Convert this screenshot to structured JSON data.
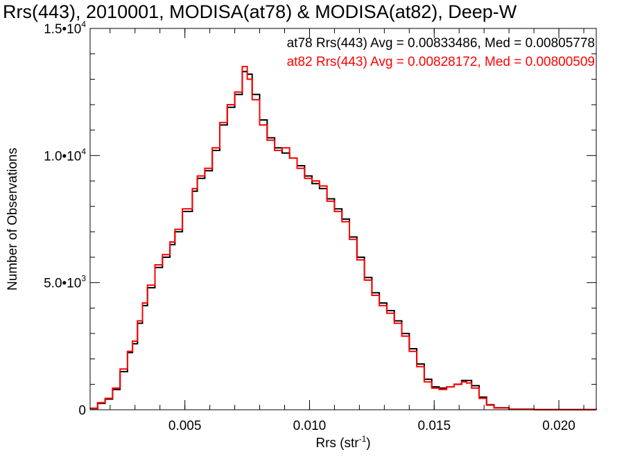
{
  "chart_data": {
    "type": "line",
    "title": "Rrs(443), 2010001, MODISA(at78) & MODISA(at82), Deep-W",
    "xlabel": "Rrs (str",
    "xlabel_sup": "-1",
    "xlabel_close": ")",
    "ylabel": "Number of Observations",
    "xlim": [
      0.0012,
      0.0215
    ],
    "ylim": [
      0,
      15000
    ],
    "x_ticks": [
      {
        "value": 0.005,
        "label": "0.005"
      },
      {
        "value": 0.01,
        "label": "0.010"
      },
      {
        "value": 0.015,
        "label": "0.015"
      },
      {
        "value": 0.02,
        "label": "0.020"
      }
    ],
    "y_ticks": [
      {
        "value": 0,
        "mant": "0",
        "exp": ""
      },
      {
        "value": 5000,
        "mant": "5.0•10",
        "exp": "3"
      },
      {
        "value": 10000,
        "mant": "1.0•10",
        "exp": "4"
      },
      {
        "value": 15000,
        "mant": "1.5•10",
        "exp": "4"
      }
    ],
    "legend_position": "top-right",
    "grid": false,
    "series": [
      {
        "name": "at78",
        "label": "at78 Rrs(443) Avg = 0.00833486, Med = 0.00805778",
        "color": "#000000",
        "points": [
          [
            0.0012,
            50
          ],
          [
            0.0015,
            250
          ],
          [
            0.0018,
            420
          ],
          [
            0.0021,
            800
          ],
          [
            0.0024,
            1500
          ],
          [
            0.0027,
            2250
          ],
          [
            0.0029,
            2600
          ],
          [
            0.0031,
            3400
          ],
          [
            0.0033,
            4100
          ],
          [
            0.0035,
            4800
          ],
          [
            0.0038,
            5600
          ],
          [
            0.0041,
            6000
          ],
          [
            0.0044,
            6500
          ],
          [
            0.0046,
            7000
          ],
          [
            0.0049,
            7800
          ],
          [
            0.0053,
            8600
          ],
          [
            0.0055,
            9100
          ],
          [
            0.0058,
            9400
          ],
          [
            0.0061,
            10200
          ],
          [
            0.0064,
            11200
          ],
          [
            0.0067,
            11900
          ],
          [
            0.007,
            12400
          ],
          [
            0.0073,
            13300
          ],
          [
            0.0075,
            13200
          ],
          [
            0.0077,
            12400
          ],
          [
            0.008,
            11400
          ],
          [
            0.0083,
            10700
          ],
          [
            0.0086,
            10300
          ],
          [
            0.0089,
            10100
          ],
          [
            0.0092,
            9900
          ],
          [
            0.0095,
            9600
          ],
          [
            0.0098,
            9200
          ],
          [
            0.0101,
            8900
          ],
          [
            0.0104,
            8700
          ],
          [
            0.0107,
            8300
          ],
          [
            0.011,
            7900
          ],
          [
            0.0113,
            7500
          ],
          [
            0.0116,
            6800
          ],
          [
            0.0119,
            6000
          ],
          [
            0.0122,
            5200
          ],
          [
            0.0125,
            4600
          ],
          [
            0.0128,
            4200
          ],
          [
            0.0131,
            3900
          ],
          [
            0.0134,
            3500
          ],
          [
            0.0137,
            3000
          ],
          [
            0.014,
            2400
          ],
          [
            0.0143,
            1800
          ],
          [
            0.0146,
            1200
          ],
          [
            0.0149,
            900
          ],
          [
            0.0152,
            850
          ],
          [
            0.0155,
            900
          ],
          [
            0.0158,
            1000
          ],
          [
            0.0161,
            1150
          ],
          [
            0.0163,
            1150
          ],
          [
            0.0165,
            950
          ],
          [
            0.0168,
            500
          ],
          [
            0.0171,
            200
          ],
          [
            0.0174,
            80
          ],
          [
            0.018,
            20
          ],
          [
            0.019,
            5
          ],
          [
            0.0215,
            0
          ]
        ]
      },
      {
        "name": "at82",
        "label": "at82 Rrs(443) Avg = 0.00828172, Med = 0.00800509",
        "color": "#ff0000",
        "points": [
          [
            0.0012,
            60
          ],
          [
            0.0015,
            280
          ],
          [
            0.0018,
            450
          ],
          [
            0.0021,
            850
          ],
          [
            0.0024,
            1600
          ],
          [
            0.0027,
            2300
          ],
          [
            0.0029,
            2700
          ],
          [
            0.0031,
            3500
          ],
          [
            0.0033,
            4200
          ],
          [
            0.0035,
            4900
          ],
          [
            0.0038,
            5700
          ],
          [
            0.0041,
            6100
          ],
          [
            0.0044,
            6600
          ],
          [
            0.0046,
            7100
          ],
          [
            0.0049,
            7900
          ],
          [
            0.0053,
            8700
          ],
          [
            0.0055,
            9200
          ],
          [
            0.0058,
            9500
          ],
          [
            0.0061,
            10300
          ],
          [
            0.0064,
            11300
          ],
          [
            0.0067,
            12000
          ],
          [
            0.007,
            12500
          ],
          [
            0.0073,
            13500
          ],
          [
            0.0075,
            13000
          ],
          [
            0.0077,
            12200
          ],
          [
            0.008,
            11200
          ],
          [
            0.0083,
            10600
          ],
          [
            0.0086,
            10200
          ],
          [
            0.0089,
            10300
          ],
          [
            0.0092,
            9900
          ],
          [
            0.0095,
            9500
          ],
          [
            0.0098,
            9100
          ],
          [
            0.0101,
            9000
          ],
          [
            0.0104,
            8800
          ],
          [
            0.0107,
            8200
          ],
          [
            0.011,
            7800
          ],
          [
            0.0113,
            7400
          ],
          [
            0.0116,
            6700
          ],
          [
            0.0119,
            5900
          ],
          [
            0.0122,
            5100
          ],
          [
            0.0125,
            4500
          ],
          [
            0.0128,
            4100
          ],
          [
            0.0131,
            3800
          ],
          [
            0.0134,
            3400
          ],
          [
            0.0137,
            2900
          ],
          [
            0.014,
            2300
          ],
          [
            0.0143,
            1700
          ],
          [
            0.0146,
            1100
          ],
          [
            0.0149,
            850
          ],
          [
            0.0152,
            800
          ],
          [
            0.0155,
            900
          ],
          [
            0.0158,
            1000
          ],
          [
            0.0161,
            1100
          ],
          [
            0.0163,
            1050
          ],
          [
            0.0165,
            850
          ],
          [
            0.0168,
            450
          ],
          [
            0.0171,
            180
          ],
          [
            0.0174,
            70
          ],
          [
            0.018,
            18
          ],
          [
            0.019,
            4
          ],
          [
            0.0215,
            0
          ]
        ]
      }
    ]
  }
}
